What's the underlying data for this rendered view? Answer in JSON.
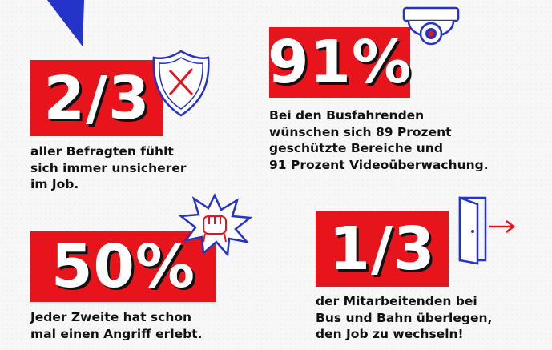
{
  "stats": [
    {
      "value": "2/3",
      "caption": [
        "aller Befragten fühlt",
        "sich immer unsicherer",
        "im Job."
      ]
    },
    {
      "value": "91%",
      "caption": [
        "Bei den Busfahrenden",
        "wünschen sich 89 Prozent",
        "geschützte Bereiche und",
        "91 Prozent Videoüberwachung."
      ]
    },
    {
      "value": "50%",
      "caption": [
        "Jeder Zweite hat schon",
        "mal einen Angriff erlebt."
      ]
    },
    {
      "value": "1/3",
      "caption": [
        "der Mitarbeitenden bei",
        "Bus und Bahn überlegen,",
        "den Job zu wechseln!"
      ]
    }
  ],
  "icons": [
    "triangle-decoration-icon",
    "shield-x-icon",
    "security-camera-icon",
    "fist-burst-icon",
    "exit-door-icon"
  ],
  "colors": {
    "accent_red": "#e8141c",
    "ink_blue": "#2433c9",
    "text": "#111111"
  }
}
